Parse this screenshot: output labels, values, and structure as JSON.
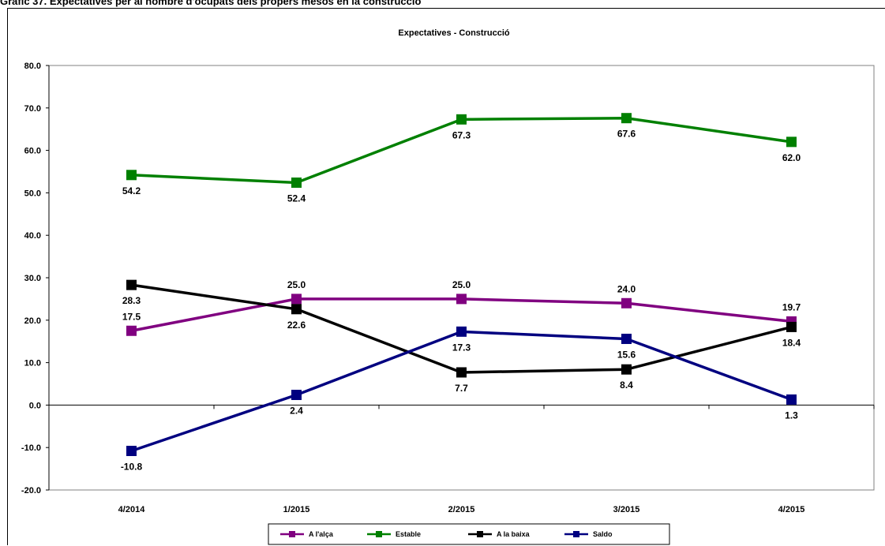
{
  "caption": "Gràfic 37. Expectatives per al nombre d'ocupats dels propers mesos en la construcció",
  "chart_data": {
    "type": "line",
    "title": "Expectatives - Construcció",
    "xlabel": "",
    "ylabel": "",
    "categories": [
      "4/2014",
      "1/2015",
      "2/2015",
      "3/2015",
      "4/2015"
    ],
    "ylim": [
      -20,
      80
    ],
    "yticks": [
      "-20.0",
      "-10.0",
      "0.0",
      "10.0",
      "20.0",
      "30.0",
      "40.0",
      "50.0",
      "60.0",
      "70.0",
      "80.0"
    ],
    "grid": false,
    "legend_position": "bottom",
    "series": [
      {
        "name": "A l'alça",
        "color": "#800080",
        "values": [
          17.5,
          25.0,
          25.0,
          24.0,
          19.7
        ],
        "labels": [
          "17.5",
          "25.0",
          "25.0",
          "24.0",
          "19.7"
        ],
        "label_side": "above"
      },
      {
        "name": "Estable",
        "color": "#008000",
        "values": [
          54.2,
          52.4,
          67.3,
          67.6,
          62.0
        ],
        "labels": [
          "54.2",
          "52.4",
          "67.3",
          "67.6",
          "62.0"
        ],
        "label_side": "below"
      },
      {
        "name": "A la baixa",
        "color": "#000000",
        "values": [
          28.3,
          22.6,
          7.7,
          8.4,
          18.4
        ],
        "labels": [
          "28.3",
          "22.6",
          "7.7",
          "8.4",
          "18.4"
        ],
        "label_side": "below"
      },
      {
        "name": "Saldo",
        "color": "#000080",
        "values": [
          -10.8,
          2.4,
          17.3,
          15.6,
          1.3
        ],
        "labels": [
          "-10.8",
          "2.4",
          "17.3",
          "15.6",
          "1.3"
        ],
        "label_side": "below"
      }
    ]
  }
}
